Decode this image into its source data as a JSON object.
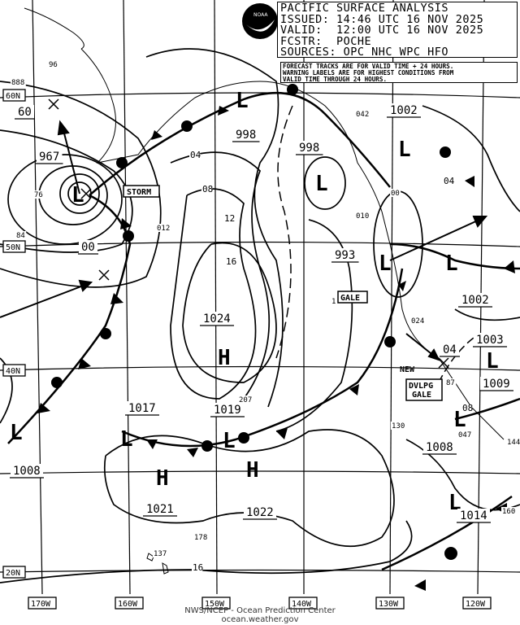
{
  "header": {
    "title": "PACIFIC SURFACE ANALYSIS",
    "issued": "ISSUED: 14:46 UTC 16 NOV 2025",
    "valid": "VALID:  12:00 UTC 16 NOV 2025",
    "forecaster": "FCSTR:  POCHE",
    "sources": "SOURCES: OPC NHC WPC HFO"
  },
  "notes": [
    "FORECAST TRACKS ARE FOR VALID TIME + 24 HOURS.",
    "WARNING LABELS ARE FOR HIGHEST CONDITIONS FROM",
    "VALID TIME THROUGH 24 HOURS."
  ],
  "logo": {
    "name": "noaa-logo",
    "text": "NOAA"
  },
  "longitudes": [
    "170W",
    "160W",
    "150W",
    "140W",
    "130W",
    "120W"
  ],
  "latitudes": [
    "60N",
    "50N",
    "40N",
    "20N"
  ],
  "warnings": [
    "STORM",
    "GALE",
    "NEW",
    "DVLPG GALE"
  ],
  "pressure_labels": [
    "967",
    "60",
    "00",
    "998",
    "998",
    "1002",
    "993",
    "1002",
    "1024",
    "1017",
    "1019",
    "1008",
    "1021",
    "1022",
    "1008",
    "1014",
    "1003",
    "1009",
    "04"
  ],
  "isobar_labels": [
    "888",
    "96",
    "04",
    "08",
    "12",
    "16",
    "76",
    "84",
    "012",
    "010",
    "00",
    "04",
    "042",
    "024",
    "1",
    "87",
    "08",
    "047",
    "144",
    "130",
    "160",
    "207",
    "178",
    "137",
    "16"
  ],
  "credit": [
    "NWS/NCEP - Ocean Prediction Center",
    "ocean.weather.gov"
  ],
  "colors": {
    "ink": "#000000",
    "background": "#ffffff"
  }
}
